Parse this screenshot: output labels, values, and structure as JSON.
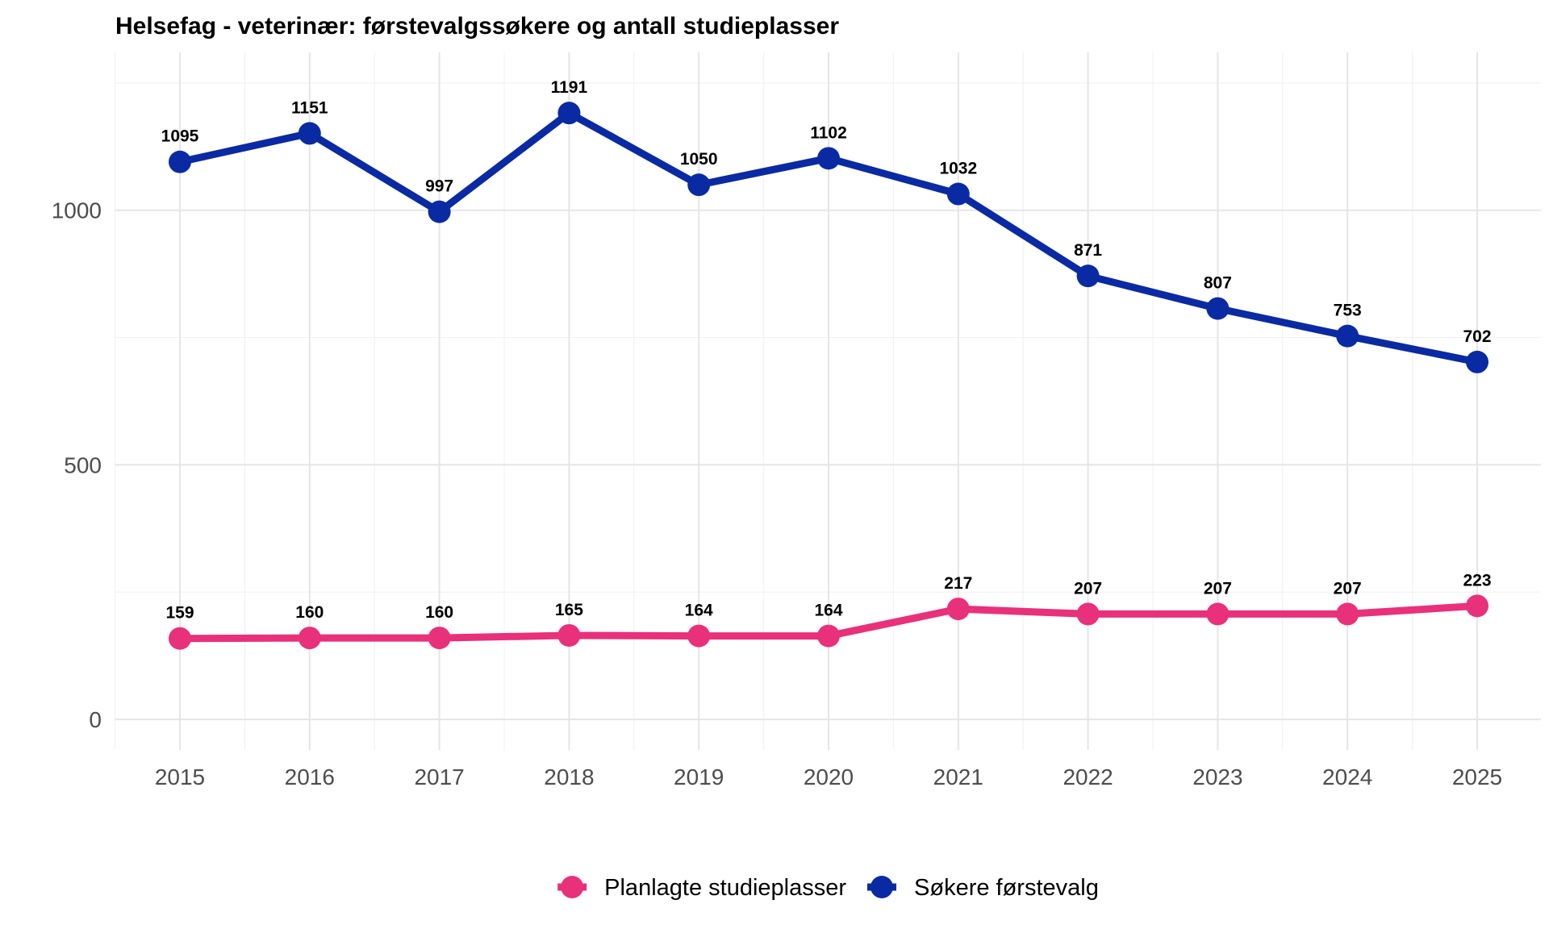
{
  "chart_data": {
    "type": "line",
    "title": "Helsefag - veterinær: førstevalgssøkere og antall studieplasser",
    "xlabel": "",
    "ylabel": "",
    "x": [
      "2015",
      "2016",
      "2017",
      "2018",
      "2019",
      "2020",
      "2021",
      "2022",
      "2023",
      "2024",
      "2025"
    ],
    "ylim": [
      -60,
      1310
    ],
    "yticks": [
      0,
      500,
      1000
    ],
    "ytick_labels": [
      "0",
      "500",
      "1000"
    ],
    "grid": true,
    "legend_position": "bottom",
    "series": [
      {
        "name": "Planlagte studieplasser",
        "color": "#e8317a",
        "values": [
          159,
          160,
          160,
          165,
          164,
          164,
          217,
          207,
          207,
          207,
          223
        ],
        "labels": [
          "159",
          "160",
          "160",
          "165",
          "164",
          "164",
          "217",
          "207",
          "207",
          "207",
          "223"
        ]
      },
      {
        "name": "Søkere førstevalg",
        "color": "#0a2aa3",
        "values": [
          1095,
          1151,
          997,
          1191,
          1050,
          1102,
          1032,
          871,
          807,
          753,
          702
        ],
        "labels": [
          "1095",
          "1151",
          "997",
          "1191",
          "1050",
          "1102",
          "1032",
          "871",
          "807",
          "753",
          "702"
        ]
      }
    ]
  }
}
